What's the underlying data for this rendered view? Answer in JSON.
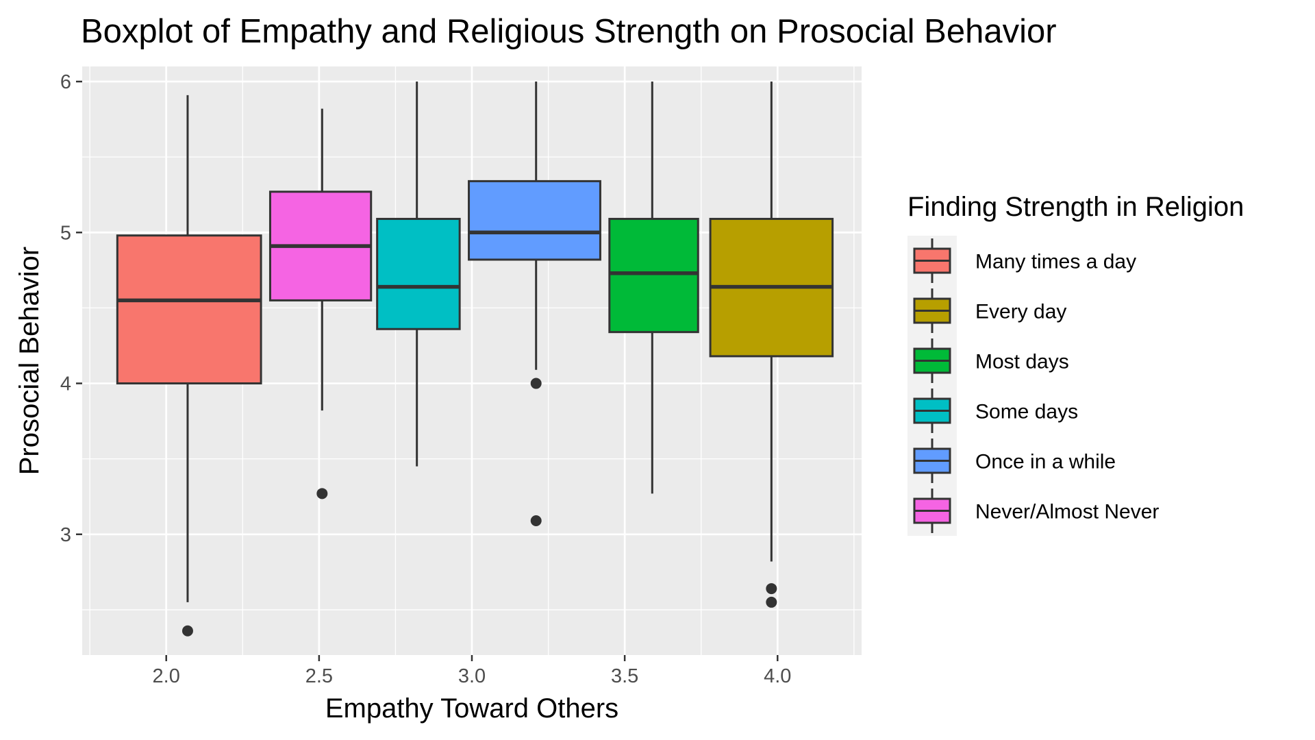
{
  "chart_data": {
    "type": "boxplot",
    "title": "Boxplot of Empathy and Religious Strength on Prosocial Behavior",
    "xlabel": "Empathy Toward Others",
    "ylabel": "Prosocial Behavior",
    "xlim": [
      1.725,
      4.275
    ],
    "ylim": [
      2.2,
      6.1
    ],
    "x_ticks": [
      {
        "value": 2.0,
        "label": "2.0"
      },
      {
        "value": 2.5,
        "label": "2.5"
      },
      {
        "value": 3.0,
        "label": "3.0"
      },
      {
        "value": 3.5,
        "label": "3.5"
      },
      {
        "value": 4.0,
        "label": "4.0"
      }
    ],
    "y_ticks": [
      {
        "value": 3,
        "label": "3"
      },
      {
        "value": 4,
        "label": "4"
      },
      {
        "value": 5,
        "label": "5"
      },
      {
        "value": 6,
        "label": "6"
      }
    ],
    "grid": true,
    "legend_position": "right",
    "legend_title": "Finding Strength in Religion",
    "series": [
      {
        "name": "Many times a day",
        "color": "#F8766D"
      },
      {
        "name": "Every day",
        "color": "#B79F00"
      },
      {
        "name": "Most days",
        "color": "#00BA38"
      },
      {
        "name": "Some days",
        "color": "#00BFC4"
      },
      {
        "name": "Once in a while",
        "color": "#619CFF"
      },
      {
        "name": "Never/Almost Never",
        "color": "#F564E3"
      }
    ],
    "boxes": [
      {
        "series": "Many times a day",
        "x": 2.07,
        "xmin": 1.84,
        "xmax": 2.31,
        "whisker_low": 2.55,
        "q1": 4.0,
        "median": 4.55,
        "q3": 4.98,
        "whisker_high": 5.91,
        "outliers": [
          2.36
        ]
      },
      {
        "series": "Never/Almost Never",
        "x": 2.51,
        "xmin": 2.34,
        "xmax": 2.67,
        "whisker_low": 3.82,
        "q1": 4.55,
        "median": 4.91,
        "q3": 5.27,
        "whisker_high": 5.82,
        "outliers": [
          3.27
        ]
      },
      {
        "series": "Some days",
        "x": 2.82,
        "xmin": 2.69,
        "xmax": 2.96,
        "whisker_low": 3.45,
        "q1": 4.36,
        "median": 4.64,
        "q3": 5.09,
        "whisker_high": 6.0,
        "outliers": []
      },
      {
        "series": "Once in a while",
        "x": 3.21,
        "xmin": 2.99,
        "xmax": 3.42,
        "whisker_low": 4.09,
        "q1": 4.82,
        "median": 5.0,
        "q3": 5.34,
        "whisker_high": 6.0,
        "outliers": [
          4.0,
          3.09
        ]
      },
      {
        "series": "Most days",
        "x": 3.59,
        "xmin": 3.45,
        "xmax": 3.74,
        "whisker_low": 3.27,
        "q1": 4.34,
        "median": 4.73,
        "q3": 5.09,
        "whisker_high": 6.0,
        "outliers": []
      },
      {
        "series": "Every day",
        "x": 3.98,
        "xmin": 3.78,
        "xmax": 4.18,
        "whisker_low": 2.82,
        "q1": 4.18,
        "median": 4.64,
        "q3": 5.09,
        "whisker_high": 6.0,
        "outliers": [
          2.64,
          2.55
        ]
      }
    ]
  }
}
